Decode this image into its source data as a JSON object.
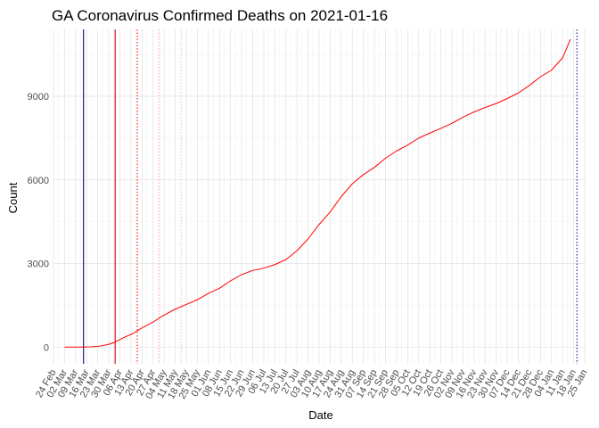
{
  "chart_data": {
    "type": "line",
    "title": "GA Coronavirus Confirmed Deaths on 2021-01-16",
    "xlabel": "Date",
    "ylabel": "Count",
    "xlim": [
      "2020-02-24",
      "2021-01-25"
    ],
    "ylim": [
      -600,
      11400
    ],
    "y_ticks": [
      0,
      3000,
      6000,
      9000
    ],
    "x_ticks": [
      {
        "date": "2020-02-24",
        "label": "24 Feb"
      },
      {
        "date": "2020-03-02",
        "label": "02 Mar"
      },
      {
        "date": "2020-03-09",
        "label": "09 Mar"
      },
      {
        "date": "2020-03-16",
        "label": "16 Mar"
      },
      {
        "date": "2020-03-23",
        "label": "23 Mar"
      },
      {
        "date": "2020-03-30",
        "label": "30 Mar"
      },
      {
        "date": "2020-04-06",
        "label": "06 Apr"
      },
      {
        "date": "2020-04-13",
        "label": "13 Apr"
      },
      {
        "date": "2020-04-20",
        "label": "20 Apr"
      },
      {
        "date": "2020-04-27",
        "label": "27 Apr"
      },
      {
        "date": "2020-05-04",
        "label": "04 May"
      },
      {
        "date": "2020-05-11",
        "label": "11 May"
      },
      {
        "date": "2020-05-18",
        "label": "18 May"
      },
      {
        "date": "2020-05-25",
        "label": "25 May"
      },
      {
        "date": "2020-06-01",
        "label": "01 Jun"
      },
      {
        "date": "2020-06-08",
        "label": "08 Jun"
      },
      {
        "date": "2020-06-15",
        "label": "15 Jun"
      },
      {
        "date": "2020-06-22",
        "label": "22 Jun"
      },
      {
        "date": "2020-06-29",
        "label": "29 Jun"
      },
      {
        "date": "2020-07-06",
        "label": "06 Jul"
      },
      {
        "date": "2020-07-13",
        "label": "13 Jul"
      },
      {
        "date": "2020-07-20",
        "label": "20 Jul"
      },
      {
        "date": "2020-07-27",
        "label": "27 Jul"
      },
      {
        "date": "2020-08-03",
        "label": "03 Aug"
      },
      {
        "date": "2020-08-10",
        "label": "10 Aug"
      },
      {
        "date": "2020-08-17",
        "label": "17 Aug"
      },
      {
        "date": "2020-08-24",
        "label": "24 Aug"
      },
      {
        "date": "2020-08-31",
        "label": "31 Aug"
      },
      {
        "date": "2020-09-07",
        "label": "07 Sep"
      },
      {
        "date": "2020-09-14",
        "label": "14 Sep"
      },
      {
        "date": "2020-09-21",
        "label": "21 Sep"
      },
      {
        "date": "2020-09-28",
        "label": "28 Sep"
      },
      {
        "date": "2020-10-05",
        "label": "05 Oct"
      },
      {
        "date": "2020-10-12",
        "label": "12 Oct"
      },
      {
        "date": "2020-10-19",
        "label": "19 Oct"
      },
      {
        "date": "2020-10-26",
        "label": "26 Oct"
      },
      {
        "date": "2020-11-02",
        "label": "02 Nov"
      },
      {
        "date": "2020-11-09",
        "label": "09 Nov"
      },
      {
        "date": "2020-11-16",
        "label": "16 Nov"
      },
      {
        "date": "2020-11-23",
        "label": "23 Nov"
      },
      {
        "date": "2020-11-30",
        "label": "30 Nov"
      },
      {
        "date": "2020-12-07",
        "label": "07 Dec"
      },
      {
        "date": "2020-12-14",
        "label": "14 Dec"
      },
      {
        "date": "2020-12-21",
        "label": "21 Dec"
      },
      {
        "date": "2020-12-28",
        "label": "28 Dec"
      },
      {
        "date": "2021-01-04",
        "label": "04 Jan"
      },
      {
        "date": "2021-01-11",
        "label": "11 Jan"
      },
      {
        "date": "2021-01-18",
        "label": "18 Jan"
      },
      {
        "date": "2021-01-25",
        "label": "25 Jan"
      }
    ],
    "grid": true,
    "legend": "none",
    "series": [
      {
        "color": "#ff0000",
        "points": [
          {
            "x": "2020-03-02",
            "y": 0
          },
          {
            "x": "2020-03-12",
            "y": 1
          },
          {
            "x": "2020-03-19",
            "y": 10
          },
          {
            "x": "2020-03-24",
            "y": 30
          },
          {
            "x": "2020-03-30",
            "y": 100
          },
          {
            "x": "2020-04-03",
            "y": 180
          },
          {
            "x": "2020-04-08",
            "y": 330
          },
          {
            "x": "2020-04-14",
            "y": 480
          },
          {
            "x": "2020-04-20",
            "y": 690
          },
          {
            "x": "2020-04-27",
            "y": 900
          },
          {
            "x": "2020-05-04",
            "y": 1150
          },
          {
            "x": "2020-05-11",
            "y": 1360
          },
          {
            "x": "2020-05-18",
            "y": 1530
          },
          {
            "x": "2020-05-25",
            "y": 1700
          },
          {
            "x": "2020-06-01",
            "y": 1930
          },
          {
            "x": "2020-06-08",
            "y": 2110
          },
          {
            "x": "2020-06-15",
            "y": 2380
          },
          {
            "x": "2020-06-22",
            "y": 2600
          },
          {
            "x": "2020-06-29",
            "y": 2750
          },
          {
            "x": "2020-07-06",
            "y": 2830
          },
          {
            "x": "2020-07-13",
            "y": 2960
          },
          {
            "x": "2020-07-20",
            "y": 3140
          },
          {
            "x": "2020-07-27",
            "y": 3460
          },
          {
            "x": "2020-08-03",
            "y": 3880
          },
          {
            "x": "2020-08-10",
            "y": 4400
          },
          {
            "x": "2020-08-17",
            "y": 4850
          },
          {
            "x": "2020-08-24",
            "y": 5400
          },
          {
            "x": "2020-08-31",
            "y": 5860
          },
          {
            "x": "2020-09-07",
            "y": 6190
          },
          {
            "x": "2020-09-14",
            "y": 6450
          },
          {
            "x": "2020-09-21",
            "y": 6780
          },
          {
            "x": "2020-09-28",
            "y": 7040
          },
          {
            "x": "2020-10-05",
            "y": 7250
          },
          {
            "x": "2020-10-12",
            "y": 7500
          },
          {
            "x": "2020-10-19",
            "y": 7680
          },
          {
            "x": "2020-10-26",
            "y": 7850
          },
          {
            "x": "2020-11-02",
            "y": 8030
          },
          {
            "x": "2020-11-09",
            "y": 8250
          },
          {
            "x": "2020-11-16",
            "y": 8440
          },
          {
            "x": "2020-11-23",
            "y": 8600
          },
          {
            "x": "2020-11-30",
            "y": 8740
          },
          {
            "x": "2020-12-07",
            "y": 8920
          },
          {
            "x": "2020-12-14",
            "y": 9120
          },
          {
            "x": "2020-12-21",
            "y": 9390
          },
          {
            "x": "2020-12-28",
            "y": 9700
          },
          {
            "x": "2021-01-04",
            "y": 9940
          },
          {
            "x": "2021-01-11",
            "y": 10380
          },
          {
            "x": "2021-01-16",
            "y": 11050
          }
        ]
      }
    ],
    "reference_lines": [
      {
        "x": "2020-03-14",
        "color": "#00008b",
        "style": "solid"
      },
      {
        "x": "2020-04-03",
        "color": "#cc0000",
        "style": "solid"
      },
      {
        "x": "2020-04-17",
        "color": "#ff0000",
        "style": "dotted"
      },
      {
        "x": "2020-05-01",
        "color": "#ff9999",
        "style": "dotted"
      },
      {
        "x": "2020-05-15",
        "color": "#ffbbbb",
        "style": "dotted"
      },
      {
        "x": "2021-01-20",
        "color": "#00008b",
        "style": "dotted"
      }
    ]
  }
}
